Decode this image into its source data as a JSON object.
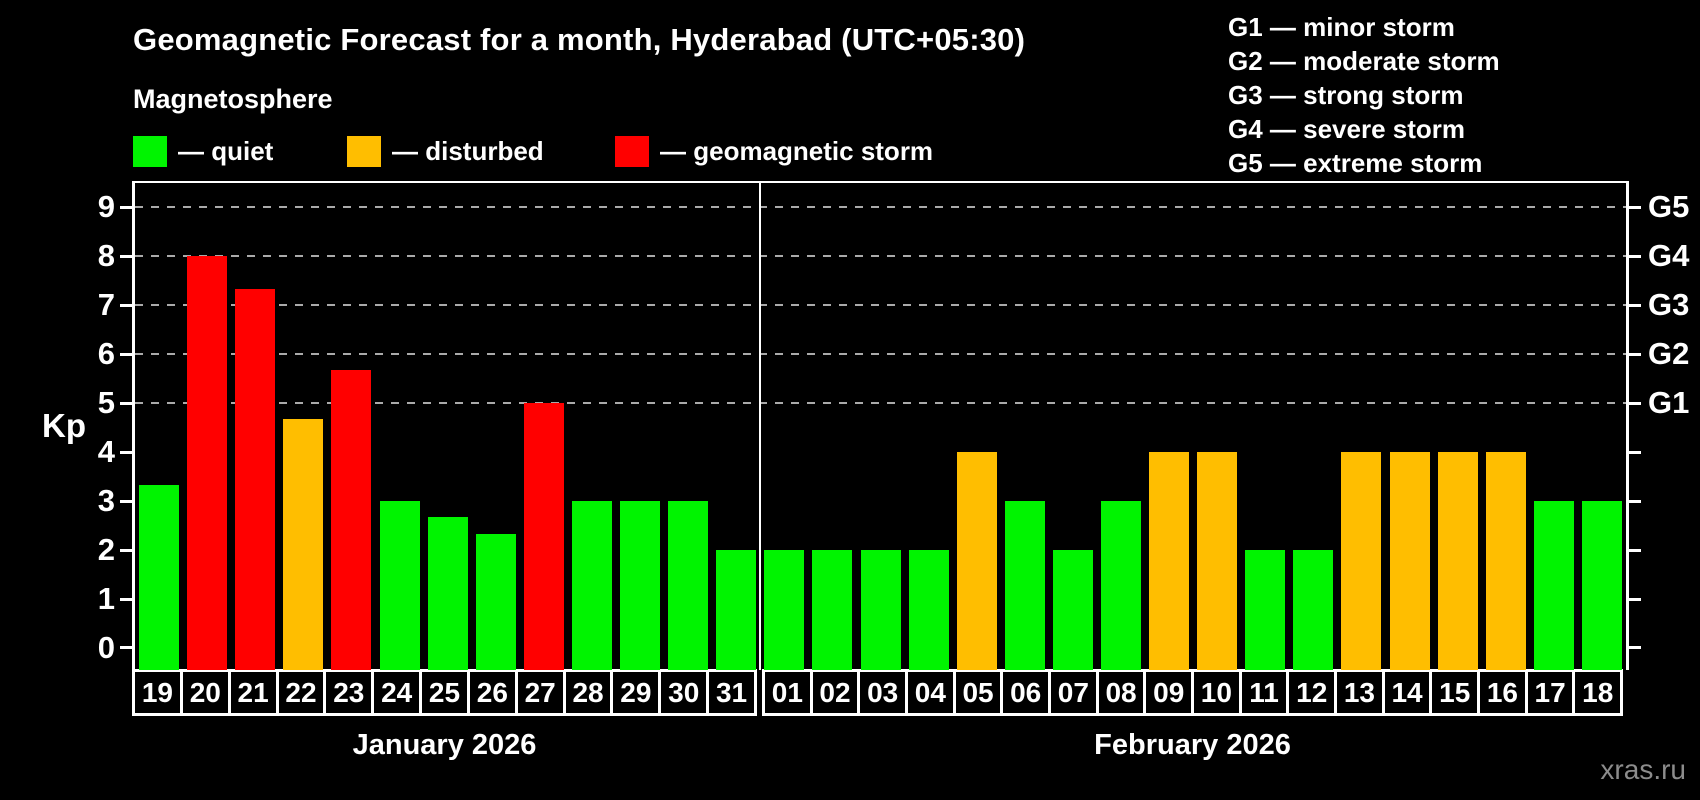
{
  "title": "Geomagnetic Forecast for a month, Hyderabad (UTC+05:30)",
  "subtitle": "Magnetosphere",
  "legend": {
    "items": [
      {
        "label": "— quiet",
        "status": "quiet",
        "color": "#00f400"
      },
      {
        "label": "— disturbed",
        "status": "disturbed",
        "color": "#ffbe00"
      },
      {
        "label": "— geomagnetic storm",
        "status": "storm",
        "color": "#ff0000"
      }
    ]
  },
  "g_legend": {
    "lines": [
      "G1 — minor storm",
      "G2 — moderate storm",
      "G3 — strong storm",
      "G4 — severe storm",
      "G5 — extreme storm"
    ]
  },
  "axis": {
    "ylabel": "Kp",
    "kp_ticks": [
      0,
      1,
      2,
      3,
      4,
      5,
      6,
      7,
      8,
      9
    ],
    "g_labels": [
      {
        "label": "G1",
        "kp": 5
      },
      {
        "label": "G2",
        "kp": 6
      },
      {
        "label": "G3",
        "kp": 7
      },
      {
        "label": "G4",
        "kp": 8
      },
      {
        "label": "G5",
        "kp": 9
      }
    ]
  },
  "chart_data": {
    "type": "bar",
    "title": "Geomagnetic Forecast for a month, Hyderabad (UTC+05:30)",
    "ylabel": "Kp",
    "ylim": [
      0,
      9
    ],
    "gridlines_at": [
      5,
      6,
      7,
      8,
      9
    ],
    "grid": "dashed horizontal at G-storm levels only",
    "legend_position": "top-left and top-right",
    "status_colors": {
      "quiet": "#00f400",
      "disturbed": "#ffbe00",
      "storm": "#ff0000"
    },
    "series": [
      {
        "month": "January 2026",
        "points": [
          {
            "day": "19",
            "kp": 3.33,
            "status": "quiet"
          },
          {
            "day": "20",
            "kp": 8.0,
            "status": "storm"
          },
          {
            "day": "21",
            "kp": 7.33,
            "status": "storm"
          },
          {
            "day": "22",
            "kp": 4.67,
            "status": "disturbed"
          },
          {
            "day": "23",
            "kp": 5.67,
            "status": "storm"
          },
          {
            "day": "24",
            "kp": 3.0,
            "status": "quiet"
          },
          {
            "day": "25",
            "kp": 2.67,
            "status": "quiet"
          },
          {
            "day": "26",
            "kp": 2.33,
            "status": "quiet"
          },
          {
            "day": "27",
            "kp": 5.0,
            "status": "storm"
          },
          {
            "day": "28",
            "kp": 3.0,
            "status": "quiet"
          },
          {
            "day": "29",
            "kp": 3.0,
            "status": "quiet"
          },
          {
            "day": "30",
            "kp": 3.0,
            "status": "quiet"
          },
          {
            "day": "31",
            "kp": 2.0,
            "status": "quiet"
          }
        ]
      },
      {
        "month": "February 2026",
        "points": [
          {
            "day": "01",
            "kp": 2.0,
            "status": "quiet"
          },
          {
            "day": "02",
            "kp": 2.0,
            "status": "quiet"
          },
          {
            "day": "03",
            "kp": 2.0,
            "status": "quiet"
          },
          {
            "day": "04",
            "kp": 2.0,
            "status": "quiet"
          },
          {
            "day": "05",
            "kp": 4.0,
            "status": "disturbed"
          },
          {
            "day": "06",
            "kp": 3.0,
            "status": "quiet"
          },
          {
            "day": "07",
            "kp": 2.0,
            "status": "quiet"
          },
          {
            "day": "08",
            "kp": 3.0,
            "status": "quiet"
          },
          {
            "day": "09",
            "kp": 4.0,
            "status": "disturbed"
          },
          {
            "day": "10",
            "kp": 4.0,
            "status": "disturbed"
          },
          {
            "day": "11",
            "kp": 2.0,
            "status": "quiet"
          },
          {
            "day": "12",
            "kp": 2.0,
            "status": "quiet"
          },
          {
            "day": "13",
            "kp": 4.0,
            "status": "disturbed"
          },
          {
            "day": "14",
            "kp": 4.0,
            "status": "disturbed"
          },
          {
            "day": "15",
            "kp": 4.0,
            "status": "disturbed"
          },
          {
            "day": "16",
            "kp": 4.0,
            "status": "disturbed"
          },
          {
            "day": "17",
            "kp": 3.0,
            "status": "quiet"
          },
          {
            "day": "18",
            "kp": 3.0,
            "status": "quiet"
          }
        ]
      }
    ]
  },
  "watermark": "xras.ru"
}
